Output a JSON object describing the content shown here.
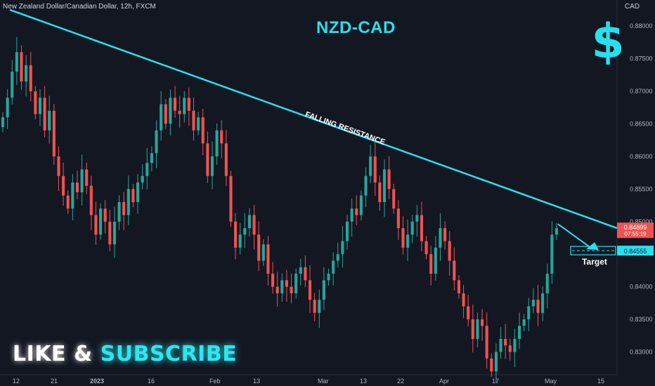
{
  "header": {
    "symbol_info": "New Zealand Dollar/Canadian Dollar, 12h, FXCM",
    "currency": "CAD"
  },
  "title": "NZD-CAD",
  "icon": "dollar-sign-icon",
  "cta": {
    "like": "LIKE",
    "amp": "&",
    "subscribe": "SUBSCRIBE"
  },
  "colors": {
    "background": "#131722",
    "up": "#26a69a",
    "down": "#ef5350",
    "trendline": "#26e0f0",
    "accent": "#26e0f0",
    "axis_text": "#b2b5be"
  },
  "chart_data": {
    "type": "candlestick",
    "title": "NZD-CAD",
    "ylabel": "CAD",
    "ylim": [
      0.8265,
      0.884
    ],
    "ytick_labels": [
      "0.88000",
      "0.87500",
      "0.87000",
      "0.86500",
      "0.86000",
      "0.85500",
      "0.85000",
      "0.84000",
      "0.83500",
      "0.83000"
    ],
    "yticks": [
      0.88,
      0.875,
      0.87,
      0.865,
      0.86,
      0.855,
      0.85,
      0.84,
      0.835,
      0.83
    ],
    "xtick_labels": [
      "12",
      "21",
      "2023",
      "16",
      "Feb",
      "13",
      "Mar",
      "13",
      "22",
      "Apr",
      "17",
      "May",
      "15"
    ],
    "price_labels": {
      "last": "0.84899",
      "last_sub": "07:55:19",
      "target": "0.84555"
    },
    "annotations": {
      "trendline_label": "FALLING RESISTANCE",
      "target_label": "Target"
    },
    "trendline": {
      "from_price": 0.8825,
      "to_price": 0.849
    },
    "target_price": 0.84555,
    "closes": [
      0.866,
      0.869,
      0.873,
      0.876,
      0.8715,
      0.874,
      0.87,
      0.8665,
      0.869,
      0.864,
      0.867,
      0.86,
      0.857,
      0.854,
      0.852,
      0.856,
      0.8545,
      0.858,
      0.8555,
      0.851,
      0.848,
      0.852,
      0.85,
      0.8465,
      0.85,
      0.853,
      0.851,
      0.855,
      0.853,
      0.856,
      0.857,
      0.859,
      0.8605,
      0.864,
      0.868,
      0.865,
      0.869,
      0.867,
      0.8665,
      0.869,
      0.867,
      0.864,
      0.866,
      0.862,
      0.857,
      0.86,
      0.864,
      0.862,
      0.857,
      0.85,
      0.846,
      0.848,
      0.849,
      0.851,
      0.848,
      0.844,
      0.8465,
      0.842,
      0.84,
      0.839,
      0.841,
      0.84,
      0.839,
      0.842,
      0.843,
      0.841,
      0.838,
      0.836,
      0.838,
      0.841,
      0.842,
      0.844,
      0.845,
      0.847,
      0.85,
      0.852,
      0.851,
      0.854,
      0.857,
      0.86,
      0.856,
      0.853,
      0.858,
      0.855,
      0.852,
      0.849,
      0.846,
      0.848,
      0.85,
      0.851,
      0.847,
      0.845,
      0.842,
      0.846,
      0.849,
      0.847,
      0.844,
      0.841,
      0.839,
      0.837,
      0.835,
      0.832,
      0.835,
      0.834,
      0.829,
      0.827,
      0.83,
      0.832,
      0.831,
      0.83,
      0.832,
      0.834,
      0.835,
      0.837,
      0.838,
      0.836,
      0.839,
      0.842,
      0.848,
      0.849
    ],
    "last_price": 0.84899
  }
}
